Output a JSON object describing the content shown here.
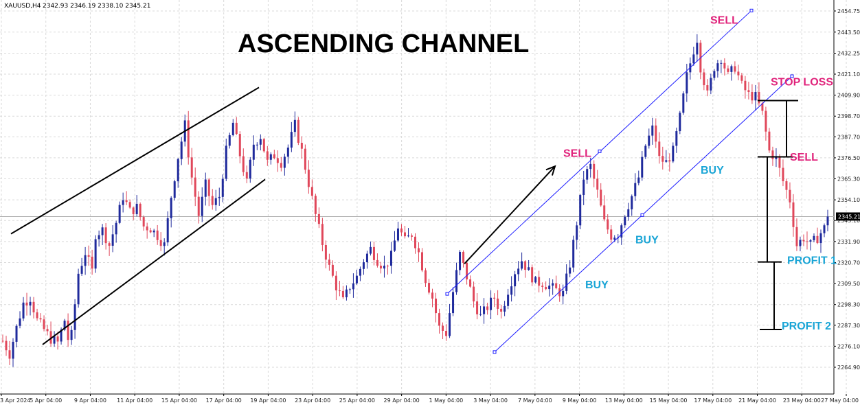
{
  "window": {
    "symbol_header": "XAUUSD,H4",
    "ohlc": "2342.93 2346.19 2338.10 2345.21"
  },
  "chart_data": {
    "type": "candlestick",
    "title": "ASCENDING CHANNEL",
    "symbol": "XAUUSD",
    "timeframe": "H4",
    "current_price": "2345.21",
    "ylim": [
      2259,
      2465
    ],
    "grid": "on",
    "colors": {
      "up": "#1f2a9c",
      "down": "#e0475a",
      "channel": "#1a1aff",
      "trend": "#000000",
      "pink": "#e0237b",
      "blue": "#1aa5d6"
    },
    "y_ticks": [
      "2454.75",
      "2443.50",
      "2432.25",
      "2421.10",
      "2409.90",
      "2398.70",
      "2387.70",
      "2376.50",
      "2365.30",
      "2354.10",
      "2343.10",
      "2331.90",
      "2320.70",
      "2309.50",
      "2298.30",
      "2287.30",
      "2276.10",
      "2264.90"
    ],
    "x_ticks": [
      "3 Apr 2024",
      "5 Apr 04:00",
      "9 Apr 04:00",
      "11 Apr 04:00",
      "15 Apr 04:00",
      "17 Apr 04:00",
      "19 Apr 04:00",
      "23 Apr 04:00",
      "25 Apr 04:00",
      "29 Apr 04:00",
      "1 May 04:00",
      "3 May 04:00",
      "7 May 04:00",
      "9 May 04:00",
      "13 May 04:00",
      "15 May 04:00",
      "17 May 04:00",
      "21 May 04:00",
      "23 May 04:00",
      "27 May 04:00"
    ],
    "price_path": [
      [
        0,
        2279
      ],
      [
        2,
        2272
      ],
      [
        4,
        2286
      ],
      [
        6,
        2299
      ],
      [
        8,
        2302
      ],
      [
        10,
        2290
      ],
      [
        12,
        2285
      ],
      [
        14,
        2280
      ],
      [
        16,
        2278
      ],
      [
        18,
        2290
      ],
      [
        19,
        2280
      ],
      [
        20,
        2282
      ],
      [
        22,
        2315
      ],
      [
        24,
        2326
      ],
      [
        26,
        2316
      ],
      [
        27,
        2336
      ],
      [
        29,
        2338
      ],
      [
        31,
        2330
      ],
      [
        33,
        2342
      ],
      [
        35,
        2356
      ],
      [
        37,
        2348
      ],
      [
        39,
        2350
      ],
      [
        41,
        2340
      ],
      [
        43,
        2339
      ],
      [
        45,
        2335
      ],
      [
        47,
        2330
      ],
      [
        49,
        2356
      ],
      [
        51,
        2377
      ],
      [
        53,
        2394
      ],
      [
        54,
        2379
      ],
      [
        55,
        2366
      ],
      [
        57,
        2346
      ],
      [
        59,
        2362
      ],
      [
        61,
        2351
      ],
      [
        63,
        2356
      ],
      [
        65,
        2380
      ],
      [
        67,
        2395
      ],
      [
        69,
        2378
      ],
      [
        71,
        2363
      ],
      [
        73,
        2384
      ],
      [
        75,
        2388
      ],
      [
        77,
        2374
      ],
      [
        79,
        2378
      ],
      [
        81,
        2374
      ],
      [
        83,
        2382
      ],
      [
        85,
        2394
      ],
      [
        87,
        2380
      ],
      [
        89,
        2363
      ],
      [
        91,
        2346
      ],
      [
        93,
        2331
      ],
      [
        95,
        2318
      ],
      [
        97,
        2308
      ],
      [
        99,
        2300
      ],
      [
        101,
        2308
      ],
      [
        103,
        2313
      ],
      [
        105,
        2322
      ],
      [
        107,
        2328
      ],
      [
        109,
        2322
      ],
      [
        111,
        2318
      ],
      [
        113,
        2324
      ],
      [
        115,
        2340
      ],
      [
        117,
        2332
      ],
      [
        119,
        2336
      ],
      [
        121,
        2326
      ],
      [
        123,
        2312
      ],
      [
        125,
        2302
      ],
      [
        127,
        2286
      ],
      [
        129,
        2283
      ],
      [
        131,
        2305
      ],
      [
        133,
        2325
      ],
      [
        135,
        2313
      ],
      [
        137,
        2300
      ],
      [
        139,
        2292
      ],
      [
        141,
        2297
      ],
      [
        143,
        2302
      ],
      [
        145,
        2294
      ],
      [
        147,
        2306
      ],
      [
        149,
        2316
      ],
      [
        151,
        2322
      ],
      [
        153,
        2316
      ],
      [
        155,
        2310
      ],
      [
        157,
        2310
      ],
      [
        159,
        2308
      ],
      [
        161,
        2306
      ],
      [
        163,
        2304
      ],
      [
        165,
        2320
      ],
      [
        167,
        2342
      ],
      [
        169,
        2366
      ],
      [
        171,
        2372
      ],
      [
        173,
        2358
      ],
      [
        175,
        2342
      ],
      [
        177,
        2335
      ],
      [
        179,
        2336
      ],
      [
        181,
        2347
      ],
      [
        183,
        2356
      ],
      [
        185,
        2366
      ],
      [
        187,
        2383
      ],
      [
        189,
        2392
      ],
      [
        190,
        2386
      ],
      [
        191,
        2376
      ],
      [
        193,
        2374
      ],
      [
        195,
        2380
      ],
      [
        197,
        2398
      ],
      [
        199,
        2420
      ],
      [
        201,
        2434
      ],
      [
        202,
        2440
      ],
      [
        203,
        2425
      ],
      [
        205,
        2410
      ],
      [
        207,
        2425
      ],
      [
        209,
        2430
      ],
      [
        211,
        2420
      ],
      [
        213,
        2425
      ],
      [
        215,
        2415
      ],
      [
        217,
        2410
      ],
      [
        219,
        2409
      ],
      [
        221,
        2400
      ],
      [
        223,
        2380
      ],
      [
        225,
        2376
      ],
      [
        227,
        2364
      ],
      [
        229,
        2354
      ],
      [
        231,
        2330
      ],
      [
        233,
        2334
      ],
      [
        235,
        2330
      ],
      [
        237,
        2334
      ],
      [
        239,
        2339
      ],
      [
        240,
        2345.21
      ]
    ],
    "channel_left": {
      "upper": [
        [
          16,
          2336
        ],
        [
          377,
          2414
        ]
      ],
      "lower": [
        [
          62,
          2277
        ],
        [
          386,
          2365
        ]
      ]
    },
    "trend_arrow": [
      [
        676,
        2320
      ],
      [
        808,
        2372
      ]
    ],
    "channel_right": {
      "upper": [
        [
          651,
          2304
        ],
        [
          1094,
          2455
        ]
      ],
      "lower": [
        [
          720,
          2273
        ],
        [
          1153,
          2420
        ]
      ],
      "handles": [
        [
          651,
          2304
        ],
        [
          873,
          2380
        ],
        [
          1094,
          2455
        ],
        [
          720,
          2273
        ],
        [
          935,
          2346
        ],
        [
          1153,
          2420
        ]
      ]
    },
    "levels": [
      {
        "y": 2407,
        "x1": 1103,
        "x2": 1162
      },
      {
        "y": 2377,
        "x1": 1103,
        "x2": 1155
      },
      {
        "y": 2321,
        "x1": 1103,
        "x2": 1138
      },
      {
        "y": 2285,
        "x1": 1106,
        "x2": 1138
      }
    ],
    "vlines": [
      {
        "x": 1145,
        "y1": 2407,
        "y2": 2377
      },
      {
        "x": 1117,
        "y1": 2377,
        "y2": 2321
      },
      {
        "x": 1127,
        "y1": 2321,
        "y2": 2285
      }
    ],
    "annotations": [
      {
        "text": "SELL",
        "color": "pink",
        "x": 1034,
        "y": 2448
      },
      {
        "text": "STOP LOSS",
        "color": "pink",
        "x": 1122,
        "y": 2415
      },
      {
        "text": "SELL",
        "color": "pink",
        "x": 820,
        "y": 2377
      },
      {
        "text": "SELL",
        "color": "pink",
        "x": 1150,
        "y": 2375
      },
      {
        "text": "BUY",
        "color": "blue",
        "x": 1020,
        "y": 2368
      },
      {
        "text": "BUY",
        "color": "blue",
        "x": 925,
        "y": 2331
      },
      {
        "text": "PROFIT 1",
        "color": "blue",
        "x": 1146,
        "y": 2320
      },
      {
        "text": "BUY",
        "color": "blue",
        "x": 852,
        "y": 2307
      },
      {
        "text": "PROFIT 2",
        "color": "blue",
        "x": 1138,
        "y": 2285
      }
    ]
  }
}
